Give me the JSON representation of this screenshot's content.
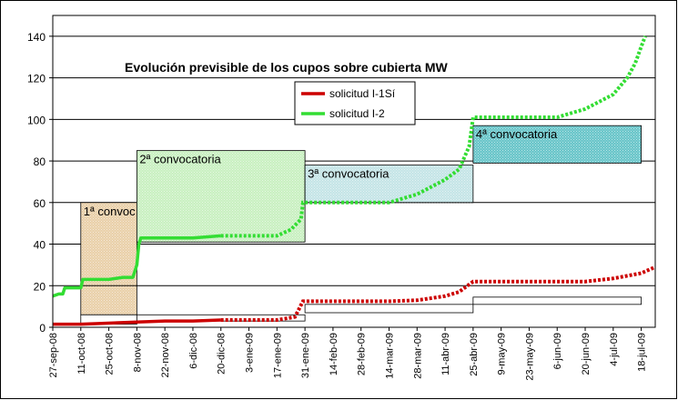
{
  "chart_data": {
    "type": "line",
    "title": "Evolución previsible de los cupos sobre cubierta MW",
    "ylim": [
      0,
      150
    ],
    "yticks": [
      0,
      20,
      40,
      60,
      80,
      100,
      120,
      140
    ],
    "grid": true,
    "legend_position": "top-center",
    "x_start": "2008-09-27",
    "x_end": "2009-07-25",
    "xticks": [
      {
        "date": "2008-09-27",
        "label": "27-sep-08"
      },
      {
        "date": "2008-10-11",
        "label": "11-oct-08"
      },
      {
        "date": "2008-10-25",
        "label": "25-oct-08"
      },
      {
        "date": "2008-11-08",
        "label": "8-nov-08"
      },
      {
        "date": "2008-11-22",
        "label": "22-nov-08"
      },
      {
        "date": "2008-12-06",
        "label": "6-dic-08"
      },
      {
        "date": "2008-12-20",
        "label": "20-dic-08"
      },
      {
        "date": "2009-01-03",
        "label": "3-ene-09"
      },
      {
        "date": "2009-01-17",
        "label": "17-ene-09"
      },
      {
        "date": "2009-01-31",
        "label": "31-ene-09"
      },
      {
        "date": "2009-02-14",
        "label": "14-feb-09"
      },
      {
        "date": "2009-02-28",
        "label": "28-feb-09"
      },
      {
        "date": "2009-03-14",
        "label": "14-mar-09"
      },
      {
        "date": "2009-03-28",
        "label": "28-mar-09"
      },
      {
        "date": "2009-04-11",
        "label": "11-abr-09"
      },
      {
        "date": "2009-04-25",
        "label": "25-abr-09"
      },
      {
        "date": "2009-05-09",
        "label": "9-may-09"
      },
      {
        "date": "2009-05-23",
        "label": "23-may-09"
      },
      {
        "date": "2009-06-06",
        "label": "6-jun-09"
      },
      {
        "date": "2009-06-20",
        "label": "20-jun-09"
      },
      {
        "date": "2009-07-04",
        "label": "4-jul-09"
      },
      {
        "date": "2009-07-18",
        "label": "18-jul-09"
      }
    ],
    "series": [
      {
        "name": "solicitud I-2",
        "color": "#33dd33",
        "style": "solid then dotted",
        "points": [
          [
            "2008-09-27",
            15
          ],
          [
            "2008-09-30",
            16
          ],
          [
            "2008-10-02",
            16
          ],
          [
            "2008-10-03",
            19
          ],
          [
            "2008-10-11",
            19
          ],
          [
            "2008-10-12",
            23
          ],
          [
            "2008-10-25",
            23
          ],
          [
            "2008-11-01",
            24
          ],
          [
            "2008-11-06",
            24
          ],
          [
            "2008-11-08",
            30
          ],
          [
            "2008-11-09",
            40
          ],
          [
            "2008-11-10",
            43
          ],
          [
            "2008-11-22",
            43
          ],
          [
            "2008-12-06",
            43
          ],
          [
            "2008-12-20",
            44
          ],
          [
            "2009-01-03",
            44
          ],
          [
            "2009-01-17",
            44
          ],
          [
            "2009-01-24",
            47
          ],
          [
            "2009-01-29",
            52
          ],
          [
            "2009-01-30",
            60
          ],
          [
            "2009-02-07",
            60
          ],
          [
            "2009-02-21",
            60
          ],
          [
            "2009-03-07",
            60
          ],
          [
            "2009-03-14",
            60
          ],
          [
            "2009-03-28",
            64
          ],
          [
            "2009-04-11",
            71
          ],
          [
            "2009-04-18",
            76
          ],
          [
            "2009-04-23",
            87
          ],
          [
            "2009-04-25",
            101
          ],
          [
            "2009-05-09",
            101
          ],
          [
            "2009-05-23",
            101
          ],
          [
            "2009-06-06",
            101
          ],
          [
            "2009-06-20",
            105
          ],
          [
            "2009-07-04",
            112
          ],
          [
            "2009-07-11",
            120
          ],
          [
            "2009-07-15",
            127
          ],
          [
            "2009-07-18",
            135
          ],
          [
            "2009-07-20",
            140
          ]
        ]
      },
      {
        "name": "solicitud I-1Sí",
        "color": "#cc0000",
        "style": "solid then dotted",
        "points": [
          [
            "2008-09-27",
            1.5
          ],
          [
            "2008-10-11",
            1.5
          ],
          [
            "2008-11-08",
            2.5
          ],
          [
            "2008-11-22",
            3
          ],
          [
            "2008-12-06",
            3
          ],
          [
            "2008-12-20",
            3.5
          ],
          [
            "2009-01-03",
            3.5
          ],
          [
            "2009-01-17",
            3.5
          ],
          [
            "2009-01-26",
            5
          ],
          [
            "2009-01-30",
            12.5
          ],
          [
            "2009-02-14",
            12.5
          ],
          [
            "2009-02-28",
            12.5
          ],
          [
            "2009-03-14",
            12.5
          ],
          [
            "2009-03-28",
            13
          ],
          [
            "2009-04-11",
            15
          ],
          [
            "2009-04-18",
            17
          ],
          [
            "2009-04-25",
            22
          ],
          [
            "2009-05-09",
            22
          ],
          [
            "2009-05-23",
            22
          ],
          [
            "2009-06-06",
            22
          ],
          [
            "2009-06-20",
            22
          ],
          [
            "2009-07-04",
            23.5
          ],
          [
            "2009-07-18",
            26
          ],
          [
            "2009-07-25",
            29
          ]
        ]
      }
    ],
    "convocatorias": [
      {
        "label": "1ª convoc",
        "start": "2008-10-11",
        "end": "2008-11-08",
        "top": 60,
        "color": "#e9cfa8"
      },
      {
        "label": "2ª convocatoria",
        "start": "2008-11-08",
        "end": "2009-01-31",
        "top": 85,
        "color": "#c8f0c0"
      },
      {
        "label": "3ª convocatoria",
        "start": "2009-01-31",
        "end": "2009-04-25",
        "top": 78,
        "color": "#c4e4e6"
      },
      {
        "label": "4ª convocatoria",
        "start": "2009-04-25",
        "end": "2009-07-18",
        "top": 97,
        "color": "#66c4c8"
      }
    ],
    "quota_bands": [
      {
        "start": "2008-10-11",
        "end": "2008-11-08",
        "bottom": 1.5,
        "top": 6
      },
      {
        "start": "2008-11-08",
        "end": "2009-01-31",
        "bottom": 3,
        "top": 6
      },
      {
        "start": "2009-01-31",
        "end": "2009-04-25",
        "bottom": 7,
        "top": 11
      },
      {
        "start": "2009-04-25",
        "end": "2009-07-18",
        "bottom": 11,
        "top": 14.5
      }
    ],
    "green_band_bottoms": [
      {
        "start": "2008-10-11",
        "end": "2008-11-08",
        "value": 20
      },
      {
        "start": "2008-11-08",
        "end": "2009-01-31",
        "value": 41
      },
      {
        "start": "2009-01-31",
        "end": "2009-04-25",
        "value": 60
      },
      {
        "start": "2009-04-25",
        "end": "2009-07-18",
        "value": 79
      }
    ]
  }
}
